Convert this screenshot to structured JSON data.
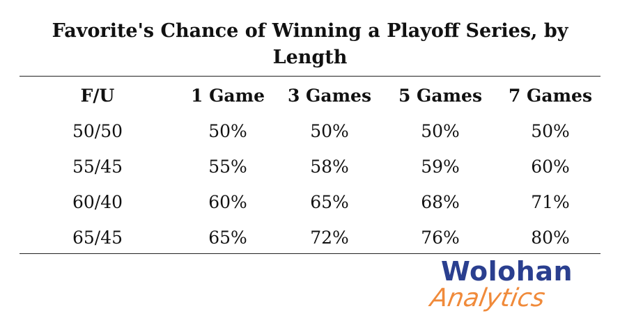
{
  "title": "Favorite's Chance of Winning a Playoff Series, by Length",
  "table": {
    "columns": [
      "F/U",
      "1 Game",
      "3 Games",
      "5 Games",
      "7 Games"
    ],
    "rows": [
      [
        "50/50",
        "50%",
        "50%",
        "50%",
        "50%"
      ],
      [
        "55/45",
        "55%",
        "58%",
        "59%",
        "60%"
      ],
      [
        "60/40",
        "60%",
        "65%",
        "68%",
        "71%"
      ],
      [
        "65/45",
        "65%",
        "72%",
        "76%",
        "80%"
      ]
    ]
  },
  "logo": {
    "line1": "Wolohan",
    "line2": "Analytics"
  }
}
